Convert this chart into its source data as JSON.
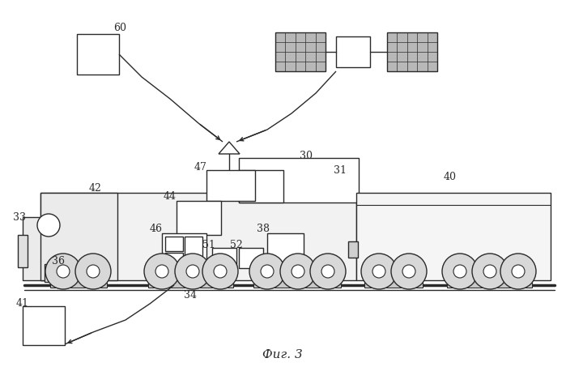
{
  "title": "Фиг. 3",
  "bg": "#ffffff",
  "lc": "#2a2a2a",
  "lw": 1.0,
  "fig_w": 6.99,
  "fig_h": 4.58,
  "dpi": 100
}
